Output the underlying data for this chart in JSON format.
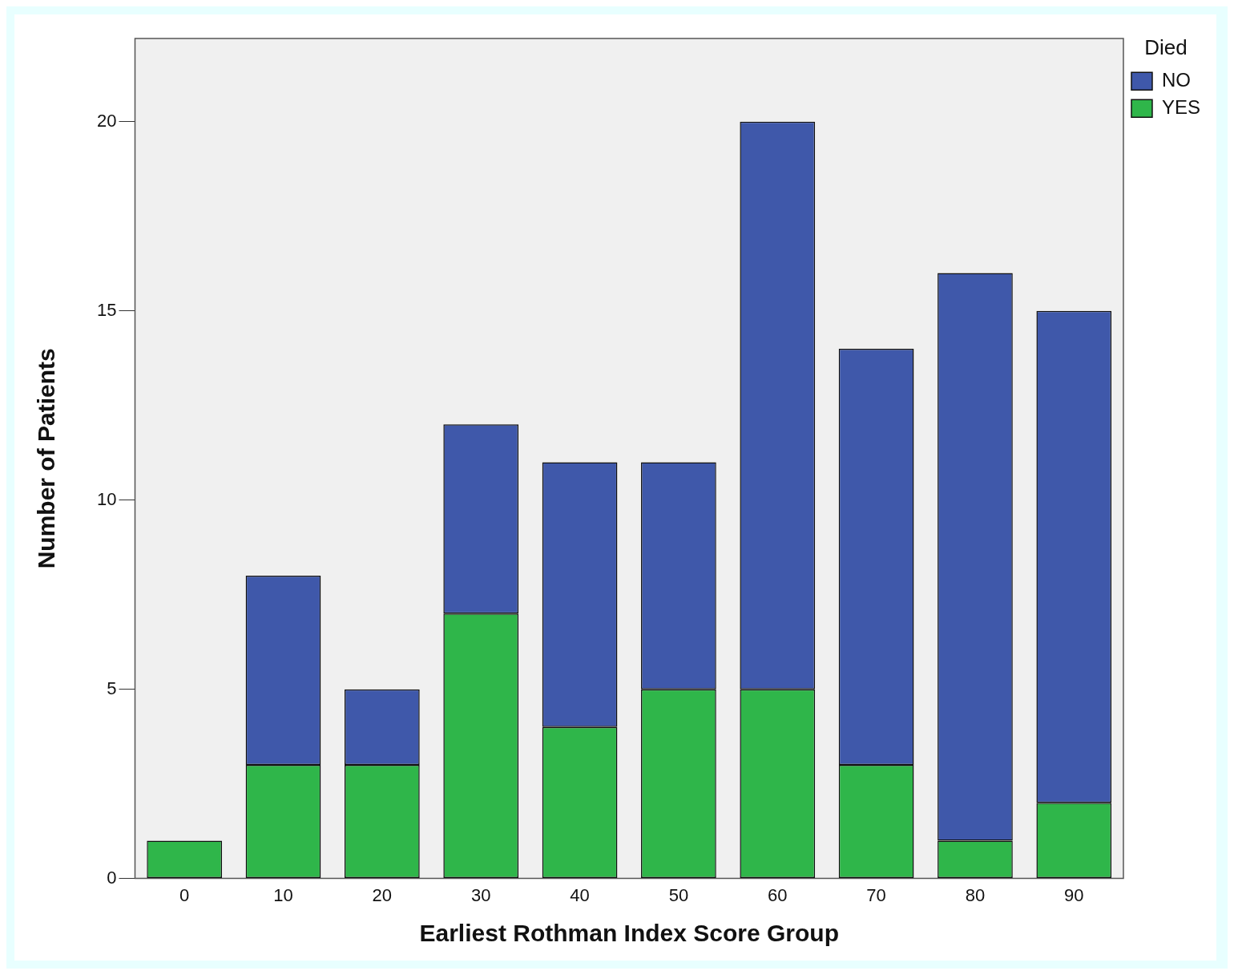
{
  "chart_data": {
    "type": "bar",
    "xlabel": "Earliest Rothman Index Score Group",
    "ylabel": "Number of Patients",
    "legend_title": "Died",
    "categories": [
      "0",
      "10",
      "20",
      "30",
      "40",
      "50",
      "60",
      "70",
      "80",
      "90"
    ],
    "stacked": true,
    "series": [
      {
        "name": "YES",
        "color": "#2fb64a",
        "values": [
          1,
          3,
          3,
          7,
          4,
          5,
          5,
          3,
          1,
          2
        ]
      },
      {
        "name": "NO",
        "color": "#3f58aa",
        "values": [
          0,
          5,
          2,
          5,
          7,
          6,
          15,
          11,
          15,
          13
        ]
      }
    ],
    "ylim": [
      0,
      22.2
    ],
    "yticks": [
      0,
      5,
      10,
      15,
      20
    ],
    "grid": false,
    "legend": "top right"
  }
}
